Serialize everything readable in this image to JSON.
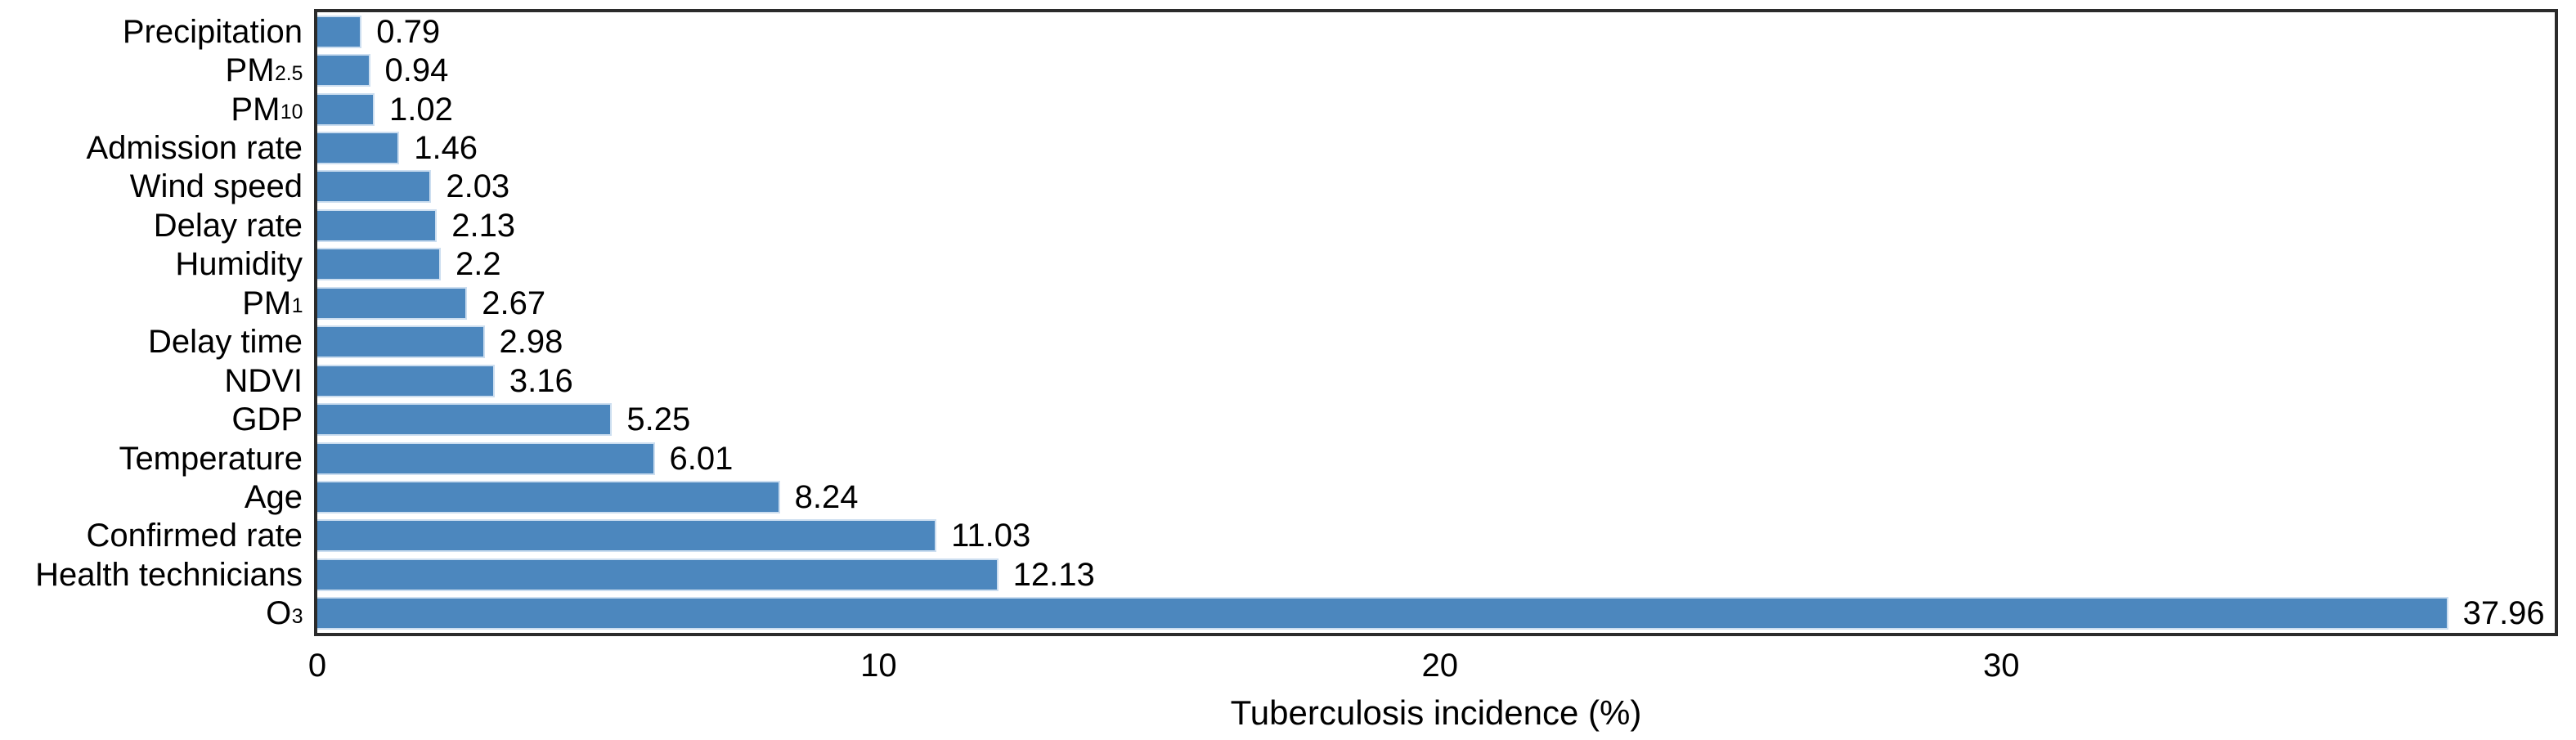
{
  "chart_data": {
    "type": "bar",
    "orientation": "horizontal",
    "title": "",
    "xlabel": "Tuberculosis incidence (%)",
    "ylabel": "",
    "xlim": [
      0,
      39.86
    ],
    "xticks": [
      0,
      10,
      20,
      30
    ],
    "grid": false,
    "legend": false,
    "bar_color": "#4C87BE",
    "bar_edge_color": "#CCDEF0",
    "frame_color": "#2b2b2b",
    "text_color": "#000000",
    "categories": [
      "Precipitation",
      "PM2.5",
      "PM10",
      "Admission rate",
      "Wind speed",
      "Delay rate",
      "Humidity",
      "PM1",
      "Delay time",
      "NDVI",
      "GDP",
      "Temperature",
      "Age",
      "Confirmed rate",
      "Health technicians",
      "O3"
    ],
    "values": [
      0.79,
      0.94,
      1.02,
      1.46,
      2.03,
      2.13,
      2.2,
      2.67,
      2.98,
      3.16,
      5.25,
      6.01,
      8.24,
      11.03,
      12.13,
      37.96
    ],
    "items": [
      {
        "label": "Precipitation",
        "sub": "",
        "value": 0.79,
        "value_label": "0.79"
      },
      {
        "label": "PM",
        "sub": "2.5",
        "value": 0.94,
        "value_label": "0.94"
      },
      {
        "label": "PM",
        "sub": "10",
        "value": 1.02,
        "value_label": "1.02"
      },
      {
        "label": "Admission rate",
        "sub": "",
        "value": 1.46,
        "value_label": "1.46"
      },
      {
        "label": "Wind speed",
        "sub": "",
        "value": 2.03,
        "value_label": "2.03"
      },
      {
        "label": "Delay rate",
        "sub": "",
        "value": 2.13,
        "value_label": "2.13"
      },
      {
        "label": "Humidity",
        "sub": "",
        "value": 2.2,
        "value_label": "2.2"
      },
      {
        "label": "PM",
        "sub": "1",
        "value": 2.67,
        "value_label": "2.67"
      },
      {
        "label": "Delay time",
        "sub": "",
        "value": 2.98,
        "value_label": "2.98"
      },
      {
        "label": "NDVI",
        "sub": "",
        "value": 3.16,
        "value_label": "3.16"
      },
      {
        "label": "GDP",
        "sub": "",
        "value": 5.25,
        "value_label": "5.25"
      },
      {
        "label": "Temperature",
        "sub": "",
        "value": 6.01,
        "value_label": "6.01"
      },
      {
        "label": "Age",
        "sub": "",
        "value": 8.24,
        "value_label": "8.24"
      },
      {
        "label": "Confirmed rate",
        "sub": "",
        "value": 11.03,
        "value_label": "11.03"
      },
      {
        "label": "Health technicians",
        "sub": "",
        "value": 12.13,
        "value_label": "12.13"
      },
      {
        "label": "O",
        "sub": "3",
        "value": 37.96,
        "value_label": "37.96"
      }
    ]
  }
}
